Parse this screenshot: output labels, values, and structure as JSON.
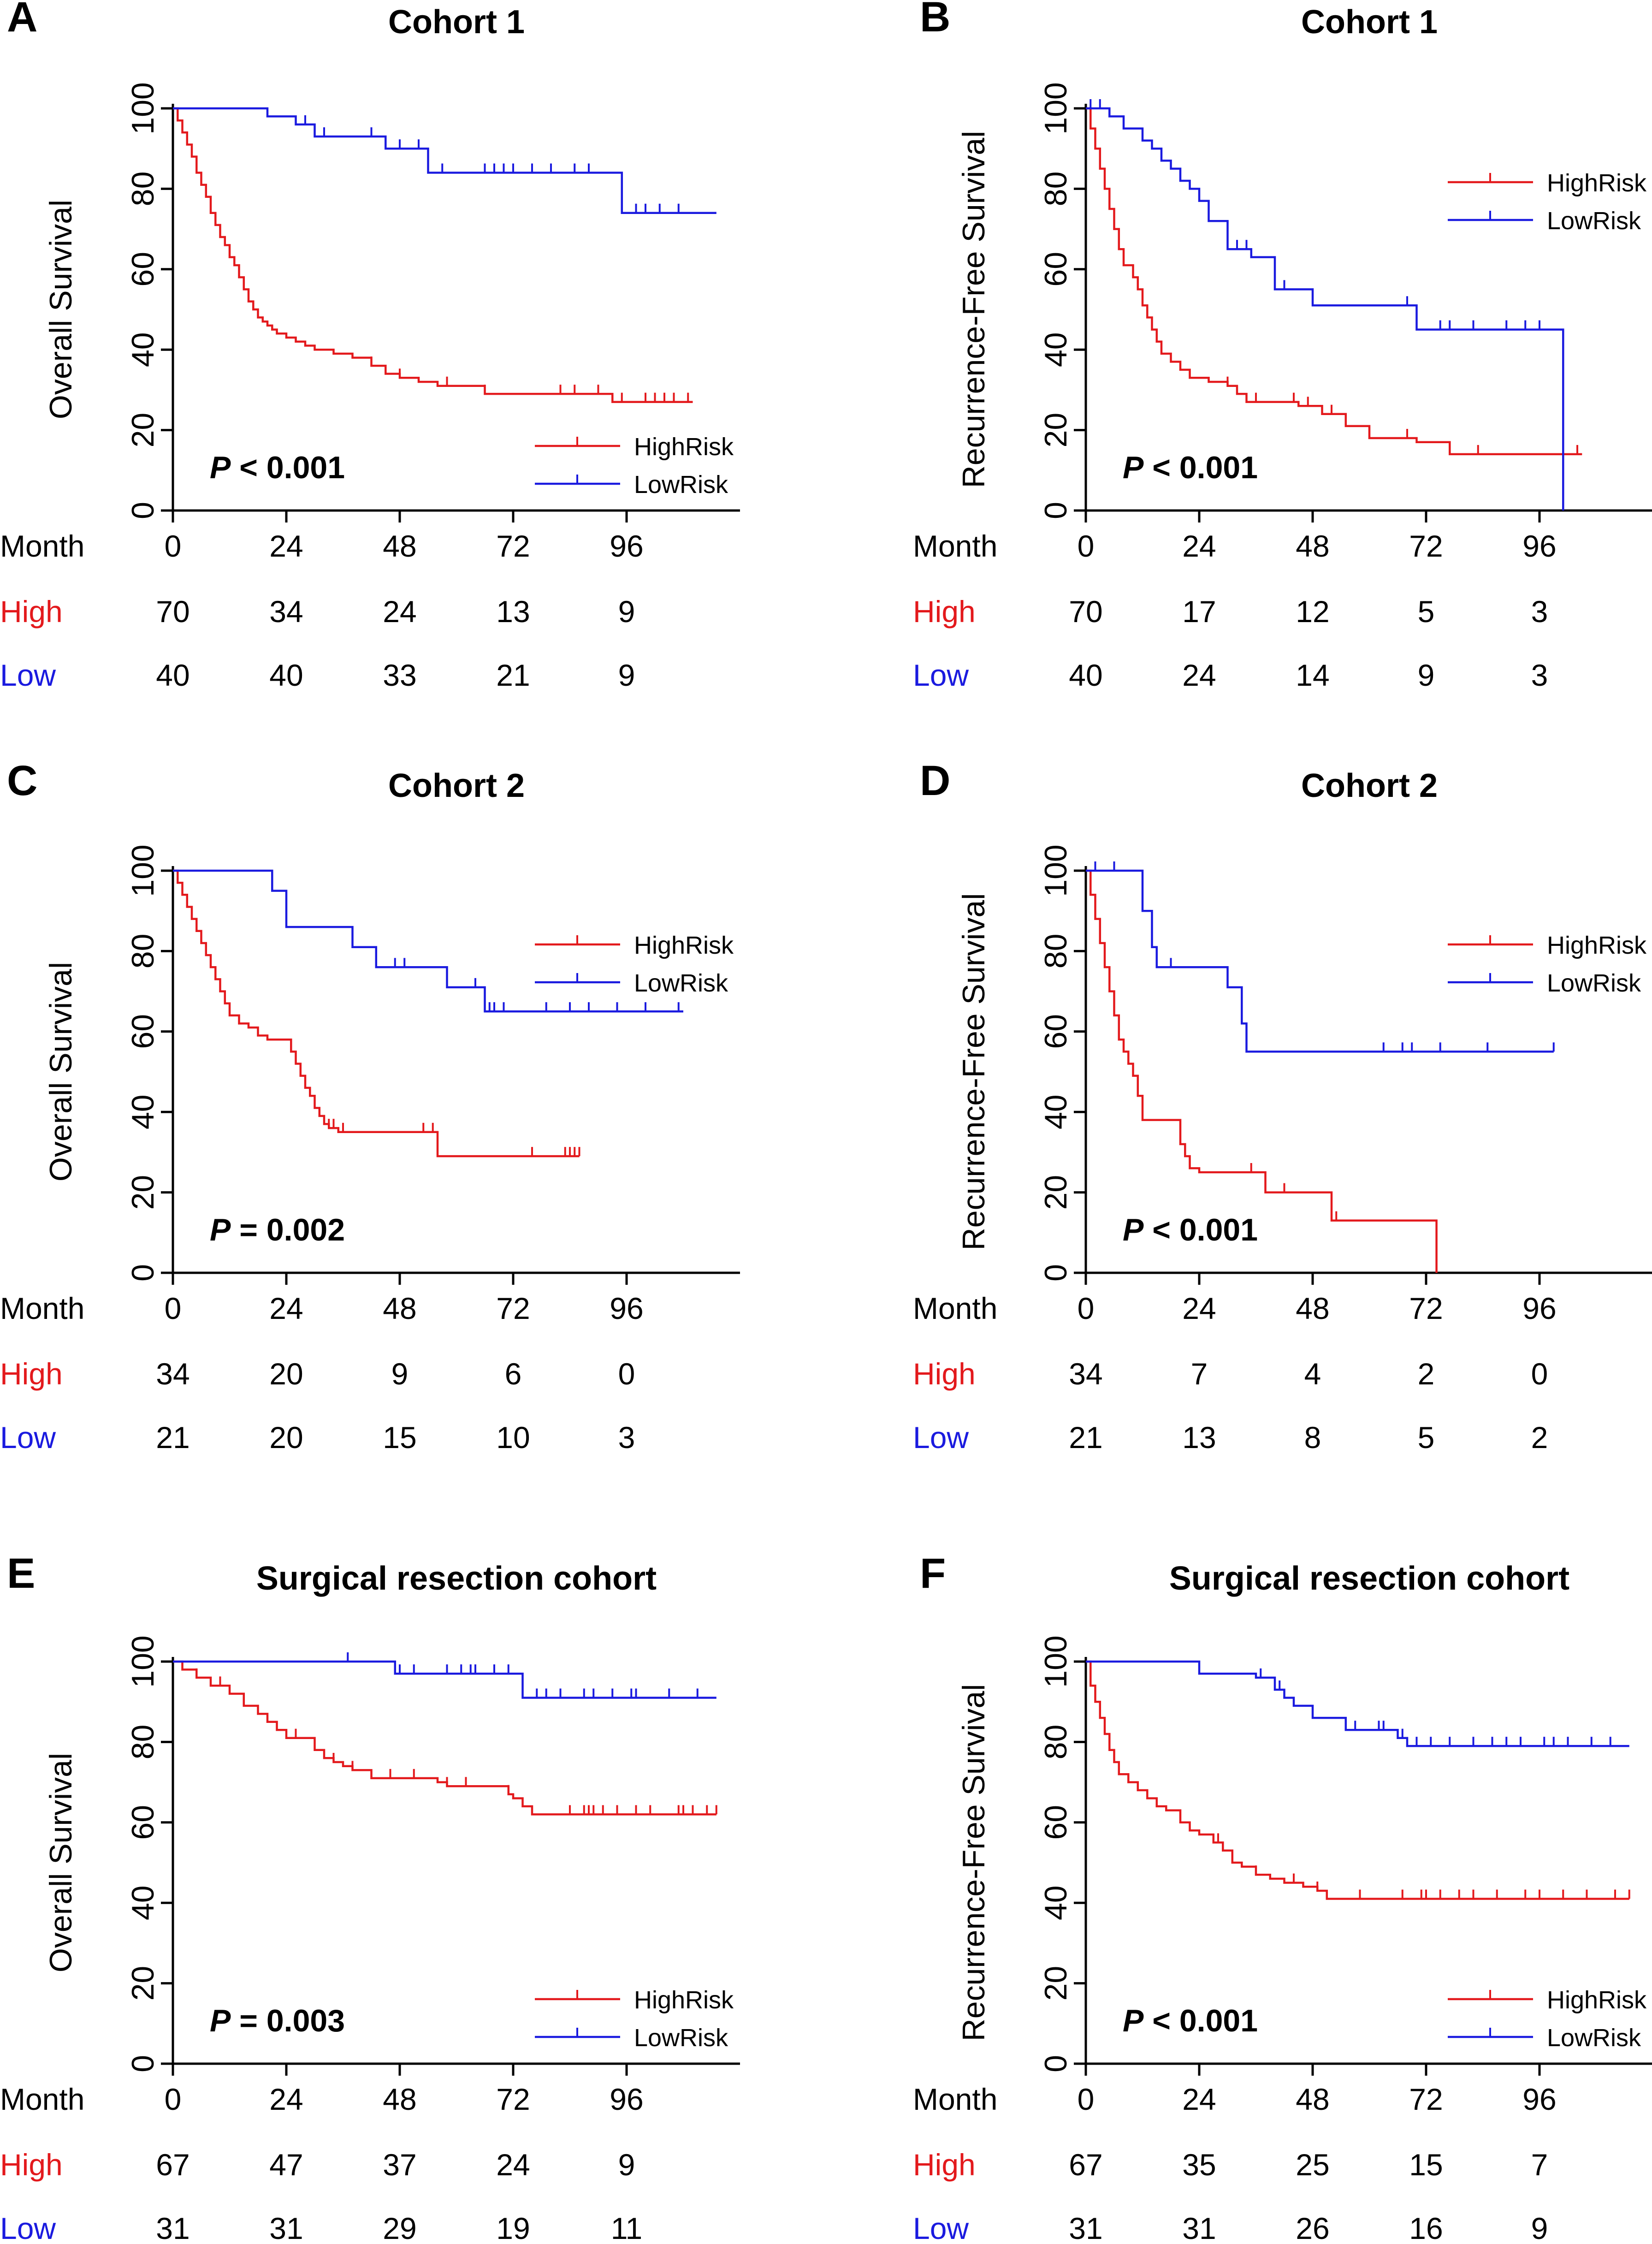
{
  "figure": {
    "month_label": "Month",
    "high_row_label": "High",
    "low_row_label": "Low",
    "colors": {
      "high": "#e3191c",
      "low": "#1a1adf",
      "axis": "#000000"
    }
  },
  "chart_data": [
    {
      "panel_letter": "A",
      "type": "line",
      "subtype": "kaplan-meier",
      "title": "Cohort 1",
      "ylabel": "Overall Survival",
      "xlabel": "Month",
      "xlim": [
        0,
        120
      ],
      "ylim": [
        0,
        100
      ],
      "xticks": [
        "0",
        "24",
        "48",
        "72",
        "96"
      ],
      "yticks": [
        "0",
        "20",
        "40",
        "60",
        "80",
        "100"
      ],
      "p_value": {
        "p": "P",
        "text": " < 0.001"
      },
      "legend": {
        "position": "bottom-right",
        "labels": [
          "HighRisk",
          "LowRisk"
        ]
      },
      "series": [
        {
          "name": "HighRisk",
          "x": [
            0,
            1,
            2,
            3,
            4,
            5,
            6,
            7,
            8,
            9,
            10,
            11,
            12,
            13,
            14,
            15,
            16,
            17,
            18,
            19,
            20,
            21,
            22,
            24,
            26,
            28,
            30,
            34,
            38,
            42,
            45,
            48,
            52,
            56,
            66,
            93,
            110
          ],
          "y": [
            100,
            97,
            94,
            91,
            88,
            84,
            81,
            78,
            74,
            71,
            68,
            66,
            63,
            61,
            58,
            55,
            52,
            50,
            48,
            47,
            46,
            45,
            44,
            43,
            42,
            41,
            40,
            39,
            38,
            36,
            34,
            33,
            32,
            31,
            29,
            27,
            27
          ],
          "censor_x": [
            42,
            48,
            58,
            66,
            82,
            85,
            90,
            95,
            100,
            102,
            104,
            106,
            109
          ]
        },
        {
          "name": "LowRisk",
          "x": [
            0,
            20,
            26,
            30,
            45,
            54,
            95,
            115
          ],
          "y": [
            100,
            98,
            96,
            93,
            90,
            84,
            74,
            74
          ],
          "censor_x": [
            28,
            32,
            42,
            48,
            52,
            57,
            66,
            68,
            70,
            72,
            76,
            80,
            85,
            88,
            98,
            100,
            103,
            107
          ]
        }
      ],
      "at_risk": {
        "high": [
          "70",
          "34",
          "24",
          "13",
          "9"
        ],
        "low": [
          "40",
          "40",
          "33",
          "21",
          "9"
        ]
      }
    },
    {
      "panel_letter": "B",
      "type": "line",
      "subtype": "kaplan-meier",
      "title": "Cohort 1",
      "ylabel": "Recurrence-Free Survival",
      "xlabel": "Month",
      "xlim": [
        0,
        120
      ],
      "ylim": [
        0,
        100
      ],
      "xticks": [
        "0",
        "24",
        "48",
        "72",
        "96"
      ],
      "yticks": [
        "0",
        "20",
        "40",
        "60",
        "80",
        "100"
      ],
      "p_value": {
        "p": "P",
        "text": " < 0.001"
      },
      "legend": {
        "position": "top-right",
        "labels": [
          "HighRisk",
          "LowRisk"
        ]
      },
      "series": [
        {
          "name": "HighRisk",
          "x": [
            0,
            1,
            2,
            3,
            4,
            5,
            6,
            7,
            8,
            10,
            11,
            12,
            13,
            14,
            15,
            16,
            18,
            20,
            22,
            26,
            30,
            32,
            34,
            45,
            50,
            55,
            60,
            70,
            77,
            90,
            105
          ],
          "y": [
            100,
            95,
            90,
            85,
            80,
            75,
            70,
            65,
            61,
            58,
            55,
            51,
            48,
            45,
            42,
            39,
            37,
            35,
            33,
            32,
            31,
            29,
            27,
            26,
            24,
            21,
            18,
            17,
            14,
            14,
            14
          ],
          "censor_x": [
            30,
            36,
            44,
            47,
            52,
            68,
            83,
            104
          ]
        },
        {
          "name": "LowRisk",
          "x": [
            0,
            5,
            8,
            12,
            14,
            16,
            18,
            20,
            22,
            24,
            26,
            30,
            35,
            40,
            48,
            70,
            100,
            101
          ],
          "y": [
            100,
            98,
            95,
            92,
            90,
            87,
            85,
            82,
            80,
            77,
            72,
            65,
            63,
            55,
            51,
            45,
            45,
            0
          ],
          "censor_x": [
            1,
            3,
            20,
            26,
            32,
            34,
            42,
            68,
            70,
            75,
            77,
            82,
            89,
            93,
            96
          ]
        }
      ],
      "at_risk": {
        "high": [
          "70",
          "17",
          "12",
          "5",
          "3"
        ],
        "low": [
          "40",
          "24",
          "14",
          "9",
          "3"
        ]
      }
    },
    {
      "panel_letter": "C",
      "type": "line",
      "subtype": "kaplan-meier",
      "title": "Cohort 2",
      "ylabel": "Overall Survival",
      "xlabel": "Month",
      "xlim": [
        0,
        120
      ],
      "ylim": [
        0,
        100
      ],
      "xticks": [
        "0",
        "24",
        "48",
        "72",
        "96"
      ],
      "yticks": [
        "0",
        "20",
        "40",
        "60",
        "80",
        "100"
      ],
      "p_value": {
        "p": "P",
        "text": " = 0.002"
      },
      "legend": {
        "position": "top-right",
        "labels": [
          "HighRisk",
          "LowRisk"
        ]
      },
      "series": [
        {
          "name": "HighRisk",
          "x": [
            0,
            1,
            2,
            3,
            4,
            5,
            6,
            7,
            8,
            9,
            10,
            11,
            12,
            14,
            16,
            18,
            20,
            25,
            26,
            27,
            28,
            29,
            30,
            31,
            32,
            33,
            35,
            56,
            86
          ],
          "y": [
            100,
            97,
            94,
            91,
            88,
            85,
            82,
            79,
            76,
            73,
            70,
            67,
            64,
            62,
            61,
            59,
            58,
            55,
            52,
            49,
            46,
            44,
            41,
            39,
            37,
            36,
            35,
            29,
            29
          ],
          "censor_x": [
            33,
            34,
            36,
            53,
            55,
            76,
            83,
            84,
            85,
            86
          ]
        },
        {
          "name": "LowRisk",
          "x": [
            0,
            21,
            24,
            38,
            43,
            58,
            66,
            108
          ],
          "y": [
            100,
            95,
            86,
            81,
            76,
            71,
            65,
            65
          ],
          "censor_x": [
            47,
            49,
            64,
            67,
            68,
            70,
            79,
            84,
            88,
            94,
            100,
            107
          ]
        }
      ],
      "at_risk": {
        "high": [
          "34",
          "20",
          "9",
          "6",
          "0"
        ],
        "low": [
          "21",
          "20",
          "15",
          "10",
          "3"
        ]
      }
    },
    {
      "panel_letter": "D",
      "type": "line",
      "subtype": "kaplan-meier",
      "title": "Cohort 2",
      "ylabel": "Recurrence-Free Survival",
      "xlabel": "Month",
      "xlim": [
        0,
        120
      ],
      "ylim": [
        0,
        100
      ],
      "xticks": [
        "0",
        "24",
        "48",
        "72",
        "96"
      ],
      "yticks": [
        "0",
        "20",
        "40",
        "60",
        "80",
        "100"
      ],
      "p_value": {
        "p": "P",
        "text": " < 0.001"
      },
      "legend": {
        "position": "top-right",
        "labels": [
          "HighRisk",
          "LowRisk"
        ]
      },
      "series": [
        {
          "name": "HighRisk",
          "x": [
            0,
            1,
            2,
            3,
            4,
            5,
            6,
            7,
            8,
            9,
            10,
            11,
            12,
            20,
            21,
            22,
            24,
            38,
            52,
            74,
            74.2
          ],
          "y": [
            100,
            94,
            88,
            82,
            76,
            70,
            64,
            58,
            55,
            52,
            49,
            44,
            38,
            32,
            29,
            26,
            25,
            20,
            13,
            13,
            0
          ],
          "censor_x": [
            35,
            42,
            53
          ]
        },
        {
          "name": "LowRisk",
          "x": [
            0,
            12,
            14,
            15,
            30,
            33,
            34,
            99
          ],
          "y": [
            100,
            90,
            81,
            76,
            71,
            62,
            55,
            55
          ],
          "censor_x": [
            2,
            6,
            18,
            30,
            63,
            67,
            69,
            75,
            85,
            99
          ]
        }
      ],
      "at_risk": {
        "high": [
          "34",
          "7",
          "4",
          "2",
          "0"
        ],
        "low": [
          "21",
          "13",
          "8",
          "5",
          "2"
        ]
      }
    },
    {
      "panel_letter": "E",
      "type": "line",
      "subtype": "kaplan-meier",
      "title": "Surgical resection cohort",
      "ylabel": "Overall Survival",
      "xlabel": "Month",
      "xlim": [
        0,
        120
      ],
      "ylim": [
        0,
        100
      ],
      "xticks": [
        "0",
        "24",
        "48",
        "72",
        "96"
      ],
      "yticks": [
        "0",
        "20",
        "40",
        "60",
        "80",
        "100"
      ],
      "p_value": {
        "p": "P",
        "text": " = 0.003"
      },
      "legend": {
        "position": "bottom-right",
        "labels": [
          "HighRisk",
          "LowRisk"
        ]
      },
      "series": [
        {
          "name": "HighRisk",
          "x": [
            0,
            2,
            5,
            8,
            12,
            15,
            18,
            20,
            22,
            24,
            30,
            32,
            34,
            36,
            38,
            42,
            56,
            58,
            71,
            72,
            74,
            76,
            115
          ],
          "y": [
            100,
            98,
            96,
            94,
            92,
            89,
            87,
            85,
            83,
            81,
            78,
            76,
            75,
            74,
            73,
            71,
            70,
            69,
            67,
            66,
            64,
            62,
            62
          ],
          "censor_x": [
            5,
            10,
            15,
            26,
            34,
            38,
            46,
            51,
            58,
            62,
            71,
            84,
            87,
            88,
            89,
            91,
            94,
            98,
            101,
            107,
            108,
            110,
            113,
            115
          ]
        },
        {
          "name": "LowRisk",
          "x": [
            0,
            47,
            74,
            115
          ],
          "y": [
            100,
            97,
            91,
            91
          ],
          "censor_x": [
            37,
            48,
            51,
            58,
            61,
            63,
            64,
            68,
            71,
            77,
            79,
            82,
            87,
            89,
            93,
            97,
            98,
            105,
            111
          ]
        }
      ],
      "at_risk": {
        "high": [
          "67",
          "47",
          "37",
          "24",
          "9"
        ],
        "low": [
          "31",
          "31",
          "29",
          "19",
          "11"
        ]
      }
    },
    {
      "panel_letter": "F",
      "type": "line",
      "subtype": "kaplan-meier",
      "title": "Surgical resection cohort",
      "ylabel": "Recurrence-Free Survival",
      "xlabel": "Month",
      "xlim": [
        0,
        120
      ],
      "ylim": [
        0,
        100
      ],
      "xticks": [
        "0",
        "24",
        "48",
        "72",
        "96"
      ],
      "yticks": [
        "0",
        "20",
        "40",
        "60",
        "80",
        "100"
      ],
      "p_value": {
        "p": "P",
        "text": " < 0.001"
      },
      "legend": {
        "position": "bottom-right",
        "labels": [
          "HighRisk",
          "LowRisk"
        ]
      },
      "series": [
        {
          "name": "HighRisk",
          "x": [
            0,
            1,
            2,
            3,
            4,
            5,
            6,
            7,
            9,
            11,
            13,
            15,
            17,
            20,
            22,
            24,
            27,
            29,
            31,
            33,
            36,
            39,
            42,
            46,
            49,
            51,
            115
          ],
          "y": [
            100,
            94,
            90,
            86,
            82,
            78,
            75,
            72,
            70,
            68,
            66,
            64,
            63,
            60,
            58,
            57,
            55,
            53,
            50,
            49,
            47,
            46,
            45,
            44,
            43,
            41,
            41
          ],
          "censor_x": [
            20,
            28,
            36,
            44,
            49,
            58,
            67,
            71,
            72,
            75,
            79,
            82,
            87,
            93,
            96,
            101,
            106,
            112,
            115
          ]
        },
        {
          "name": "LowRisk",
          "x": [
            0,
            24,
            36,
            40,
            42,
            44,
            48,
            55,
            66,
            68,
            115
          ],
          "y": [
            100,
            97,
            96,
            93,
            91,
            89,
            86,
            83,
            81,
            79,
            79
          ],
          "censor_x": [
            37,
            41,
            48,
            57,
            62,
            63,
            67,
            70,
            73,
            77,
            82,
            86,
            89,
            92,
            97,
            99,
            102,
            107,
            111
          ]
        }
      ],
      "at_risk": {
        "high": [
          "67",
          "35",
          "25",
          "15",
          "7"
        ],
        "low": [
          "31",
          "31",
          "26",
          "16",
          "9"
        ]
      }
    }
  ]
}
